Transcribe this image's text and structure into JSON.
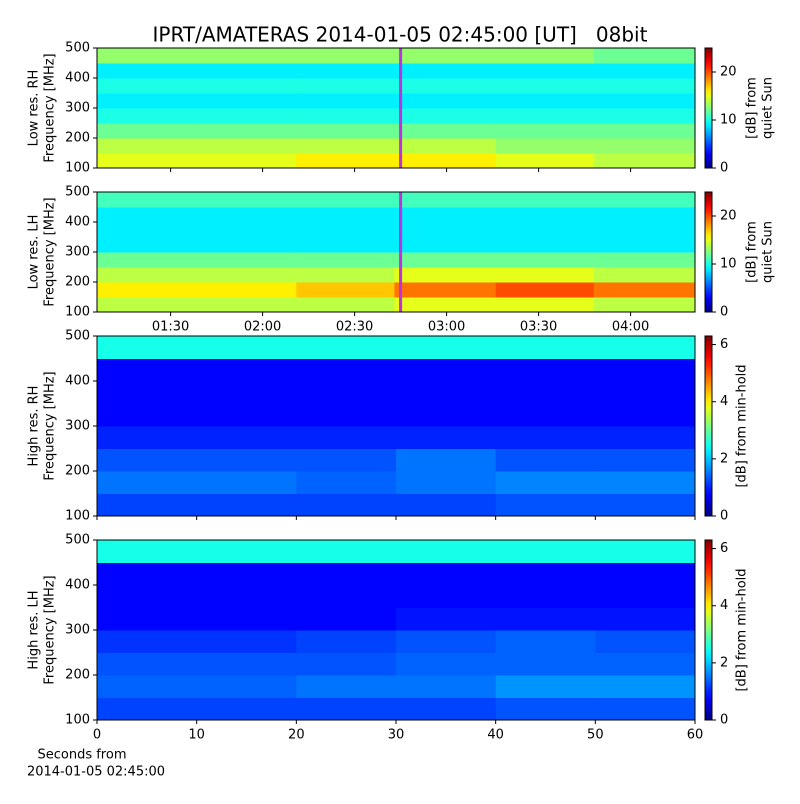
{
  "chart_data": [
    {
      "type": "heatmap",
      "title": "IPRT/AMATERAS 2014-01-05 02:45:00 [UT]   08bit",
      "ylabel": [
        "Low res. RH",
        "Frequency [MHz]"
      ],
      "ylim": [
        100,
        500
      ],
      "yticks": [
        100,
        200,
        300,
        400,
        500
      ],
      "xlim": [
        66,
        261
      ],
      "xticks": [
        {
          "value": 90,
          "label": "01:30"
        },
        {
          "value": 120,
          "label": "02:00"
        },
        {
          "value": 150,
          "label": "02:30"
        },
        {
          "value": 180,
          "label": "03:00"
        },
        {
          "value": 210,
          "label": "03:30"
        },
        {
          "value": 240,
          "label": "04:00"
        }
      ],
      "xtick_labels": false,
      "x_bins": [
        66,
        98,
        131,
        163,
        196,
        228,
        261
      ],
      "y_bins": [
        100,
        150,
        200,
        250,
        300,
        350,
        400,
        450,
        500
      ],
      "values": [
        [
          15,
          15,
          16,
          16,
          15,
          14
        ],
        [
          14,
          14,
          14,
          14,
          13,
          13
        ],
        [
          12,
          12,
          12,
          12,
          12,
          12
        ],
        [
          10,
          10,
          10,
          10,
          10,
          10
        ],
        [
          9,
          9,
          9,
          9,
          9,
          9
        ],
        [
          10,
          10,
          10,
          10,
          10,
          10
        ],
        [
          9,
          9,
          9,
          9,
          9,
          9
        ],
        [
          13,
          13,
          13,
          13,
          13,
          12
        ]
      ],
      "vline": {
        "value": 165,
        "color": "#c030e0"
      },
      "clim": [
        0,
        25
      ],
      "cticks": [
        0,
        10,
        20
      ],
      "clabel": [
        "[dB] from",
        "quiet Sun"
      ]
    },
    {
      "type": "heatmap",
      "ylabel": [
        "Low res. LH",
        "Frequency [MHz]"
      ],
      "ylim": [
        100,
        500
      ],
      "yticks": [
        100,
        200,
        300,
        400,
        500
      ],
      "xlim": [
        66,
        261
      ],
      "xticks": [
        {
          "value": 90,
          "label": "01:30"
        },
        {
          "value": 120,
          "label": "02:00"
        },
        {
          "value": 150,
          "label": "02:30"
        },
        {
          "value": 180,
          "label": "03:00"
        },
        {
          "value": 210,
          "label": "03:30"
        },
        {
          "value": 240,
          "label": "04:00"
        }
      ],
      "xtick_labels": true,
      "x_bins": [
        66,
        98,
        131,
        163,
        196,
        228,
        261
      ],
      "y_bins": [
        100,
        150,
        200,
        250,
        300,
        350,
        400,
        450,
        500
      ],
      "values": [
        [
          14,
          14,
          14,
          15,
          15,
          14
        ],
        [
          16,
          16,
          17,
          19,
          20,
          19
        ],
        [
          14,
          14,
          14,
          15,
          15,
          14
        ],
        [
          12,
          12,
          12,
          12,
          12,
          12
        ],
        [
          9,
          9,
          9,
          9,
          9,
          9
        ],
        [
          9,
          9,
          9,
          9,
          9,
          9
        ],
        [
          9,
          9,
          9,
          9,
          9,
          9
        ],
        [
          11,
          11,
          11,
          11,
          11,
          11
        ]
      ],
      "vline": {
        "value": 165,
        "color": "#c030e0"
      },
      "clim": [
        0,
        25
      ],
      "cticks": [
        0,
        10,
        20
      ],
      "clabel": [
        "[dB] from",
        "quiet Sun"
      ]
    },
    {
      "type": "heatmap",
      "ylabel": [
        "High res. RH",
        "Frequency [MHz]"
      ],
      "ylim": [
        100,
        500
      ],
      "yticks": [
        100,
        200,
        300,
        400,
        500
      ],
      "xlim": [
        0,
        60
      ],
      "xticks": [
        0,
        10,
        20,
        30,
        40,
        50,
        60
      ],
      "xtick_labels": false,
      "x_bins": [
        0,
        10,
        20,
        30,
        40,
        50,
        60
      ],
      "y_bins": [
        100,
        150,
        200,
        250,
        300,
        350,
        400,
        450,
        500
      ],
      "values": [
        [
          1.2,
          1.2,
          1.2,
          1.2,
          1.3,
          1.3
        ],
        [
          1.5,
          1.5,
          1.4,
          1.5,
          1.6,
          1.6
        ],
        [
          1.3,
          1.3,
          1.3,
          1.5,
          1.3,
          1.3
        ],
        [
          1.0,
          1.0,
          1.0,
          1.0,
          1.0,
          1.0
        ],
        [
          0.8,
          0.8,
          0.8,
          0.8,
          0.8,
          0.8
        ],
        [
          0.8,
          0.8,
          0.8,
          0.8,
          0.8,
          0.8
        ],
        [
          0.8,
          0.8,
          0.8,
          0.8,
          0.8,
          0.8
        ],
        [
          2.5,
          2.5,
          2.5,
          2.5,
          2.5,
          2.5
        ]
      ],
      "clim": [
        0,
        6.3
      ],
      "cticks": [
        0,
        2,
        4,
        6
      ],
      "clabel": [
        "[dB] from min-hold"
      ]
    },
    {
      "type": "heatmap",
      "ylabel": [
        "High res. LH",
        "Frequency [MHz]"
      ],
      "ylim": [
        100,
        500
      ],
      "yticks": [
        100,
        200,
        300,
        400,
        500
      ],
      "xlim": [
        0,
        60
      ],
      "xticks": [
        0,
        10,
        20,
        30,
        40,
        50,
        60
      ],
      "xtick_labels": true,
      "xlabel": [
        "Seconds from",
        "2014-01-05 02:45:00"
      ],
      "x_bins": [
        0,
        10,
        20,
        30,
        40,
        50,
        60
      ],
      "y_bins": [
        100,
        150,
        200,
        250,
        300,
        350,
        400,
        450,
        500
      ],
      "values": [
        [
          1.2,
          1.2,
          1.2,
          1.2,
          1.3,
          1.3
        ],
        [
          1.4,
          1.4,
          1.5,
          1.5,
          1.7,
          1.7
        ],
        [
          1.3,
          1.3,
          1.3,
          1.4,
          1.4,
          1.4
        ],
        [
          1.1,
          1.1,
          1.2,
          1.3,
          1.4,
          1.3
        ],
        [
          0.8,
          0.8,
          0.8,
          0.9,
          0.9,
          0.9
        ],
        [
          0.8,
          0.8,
          0.8,
          0.8,
          0.8,
          0.8
        ],
        [
          0.8,
          0.8,
          0.8,
          0.8,
          0.8,
          0.8
        ],
        [
          2.5,
          2.5,
          2.5,
          2.5,
          2.5,
          2.5
        ]
      ],
      "clim": [
        0,
        6.3
      ],
      "cticks": [
        0,
        2,
        4,
        6
      ],
      "clabel": [
        "[dB] from min-hold"
      ]
    }
  ]
}
